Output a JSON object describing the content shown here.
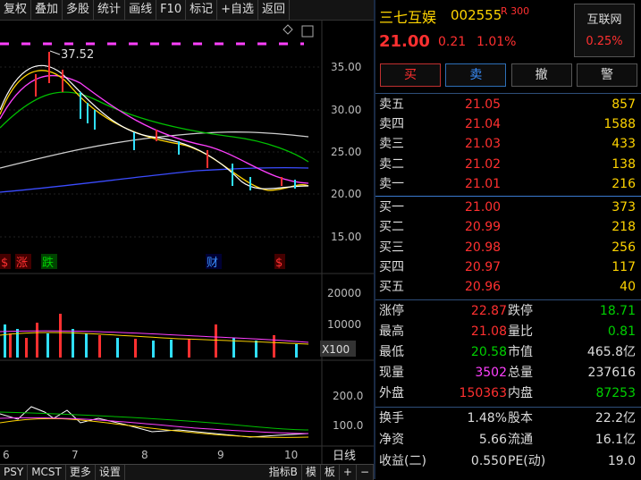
{
  "toolbar": {
    "items": [
      "复权",
      "叠加",
      "多股",
      "统计",
      "画线",
      "F10",
      "标记",
      "+自选",
      "返回"
    ]
  },
  "chart": {
    "high_label": "37.52",
    "price_axis": [
      "35.00",
      "30.00",
      "25.00",
      "20.00",
      "15.00"
    ],
    "volume_axis": [
      "20000",
      "10000"
    ],
    "volume_unit": "X100",
    "indicator_axis": [
      "200.0",
      "100.0"
    ],
    "markers": {
      "s1": "$",
      "zhang": "涨",
      "die": "跌",
      "cai": "财",
      "s2": "$"
    },
    "date_axis": [
      "6",
      "7",
      "8",
      "9",
      "10"
    ],
    "period": "日线"
  },
  "bottombar": {
    "items": [
      "PSY",
      "MCST",
      "更多",
      "设置"
    ],
    "right": [
      "指标B",
      "模",
      "板"
    ],
    "plus": "+",
    "minus": "−"
  },
  "stock": {
    "name": "三七互娱",
    "code": "002555",
    "badge": "R 300",
    "price": "21.00",
    "change": "0.21",
    "pct": "1.01%"
  },
  "sector": {
    "name": "互联网",
    "pct": "0.25%"
  },
  "actions": {
    "buy": "买",
    "sell": "卖",
    "cancel": "撤",
    "alert": "警"
  },
  "orderbook": {
    "asks": [
      {
        "label": "卖五",
        "price": "21.05",
        "vol": "857"
      },
      {
        "label": "卖四",
        "price": "21.04",
        "vol": "1588"
      },
      {
        "label": "卖三",
        "price": "21.03",
        "vol": "433"
      },
      {
        "label": "卖二",
        "price": "21.02",
        "vol": "138"
      },
      {
        "label": "卖一",
        "price": "21.01",
        "vol": "216"
      }
    ],
    "bids": [
      {
        "label": "买一",
        "price": "21.00",
        "vol": "373"
      },
      {
        "label": "买二",
        "price": "20.99",
        "vol": "218"
      },
      {
        "label": "买三",
        "price": "20.98",
        "vol": "256"
      },
      {
        "label": "买四",
        "price": "20.97",
        "vol": "117"
      },
      {
        "label": "买五",
        "price": "20.96",
        "vol": "40"
      }
    ]
  },
  "stats": [
    {
      "l1": "涨停",
      "v1": "22.87",
      "c1": "red",
      "l2": "跌停",
      "v2": "18.71",
      "c2": "green"
    },
    {
      "l1": "最高",
      "v1": "21.08",
      "c1": "red",
      "l2": "量比",
      "v2": "0.81",
      "c2": "green"
    },
    {
      "l1": "最低",
      "v1": "20.58",
      "c1": "green",
      "l2": "市值",
      "v2": "465.8亿",
      "c2": "white"
    },
    {
      "l1": "现量",
      "v1": "3502",
      "c1": "mag",
      "l2": "总量",
      "v2": "237616",
      "c2": "white"
    },
    {
      "l1": "外盘",
      "v1": "150363",
      "c1": "red",
      "l2": "内盘",
      "v2": "87253",
      "c2": "green"
    },
    {
      "l1": "换手",
      "v1": "1.48%",
      "c1": "white",
      "l2": "股本",
      "v2": "22.2亿",
      "c2": "white"
    },
    {
      "l1": "净资",
      "v1": "5.66",
      "c1": "white",
      "l2": "流通",
      "v2": "16.1亿",
      "c2": "white"
    },
    {
      "l1": "收益(二)",
      "v1": "0.550",
      "c1": "white",
      "l2": "PE(动)",
      "v2": "19.0",
      "c2": "white"
    }
  ],
  "colors": {
    "up": "#ff3030",
    "down": "#00d000",
    "vol": "#ffd400",
    "accent": "#ff40ff"
  }
}
